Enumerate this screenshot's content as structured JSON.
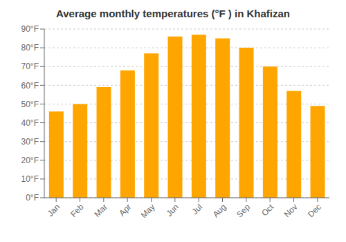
{
  "chart_data": {
    "type": "bar",
    "title": "Average monthly temperatures (°F ) in Khafizan",
    "categories": [
      "Jan",
      "Feb",
      "Mar",
      "Apr",
      "May",
      "Jun",
      "Jul",
      "Aug",
      "Sep",
      "Oct",
      "Nov",
      "Dec"
    ],
    "values": [
      46,
      50,
      59,
      68,
      77,
      86,
      87,
      85,
      80,
      70,
      57,
      49
    ],
    "color": "#FFA500",
    "ylim": [
      0,
      90
    ],
    "yticks": [
      {
        "value": 0,
        "label": "0°F"
      },
      {
        "value": 10,
        "label": "10°F"
      },
      {
        "value": 20,
        "label": "20°F"
      },
      {
        "value": 30,
        "label": "30°F"
      },
      {
        "value": 40,
        "label": "40°F"
      },
      {
        "value": 50,
        "label": "50°F"
      },
      {
        "value": 60,
        "label": "60°F"
      },
      {
        "value": 70,
        "label": "70°F"
      },
      {
        "value": 80,
        "label": "80°F"
      },
      {
        "value": 90,
        "label": "90°F"
      }
    ],
    "grid": true
  }
}
